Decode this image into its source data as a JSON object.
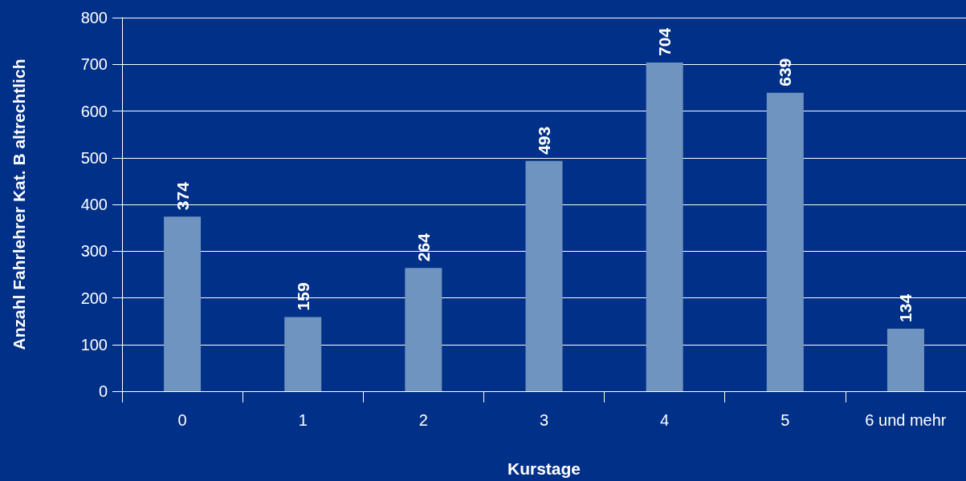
{
  "chart_data": {
    "type": "bar",
    "xlabel": "Kurstage",
    "ylabel": "Anzahl Fahrlehrer Kat. B altrechtlich",
    "categories": [
      "0",
      "1",
      "2",
      "3",
      "4",
      "5",
      "6 und mehr"
    ],
    "values": [
      374,
      159,
      264,
      493,
      704,
      639,
      134
    ],
    "color": "#7094c0",
    "ylim": [
      0,
      800
    ],
    "yticks": [
      0,
      100,
      200,
      300,
      400,
      500,
      600,
      700,
      800
    ],
    "grid": "y",
    "data_labels": true
  }
}
